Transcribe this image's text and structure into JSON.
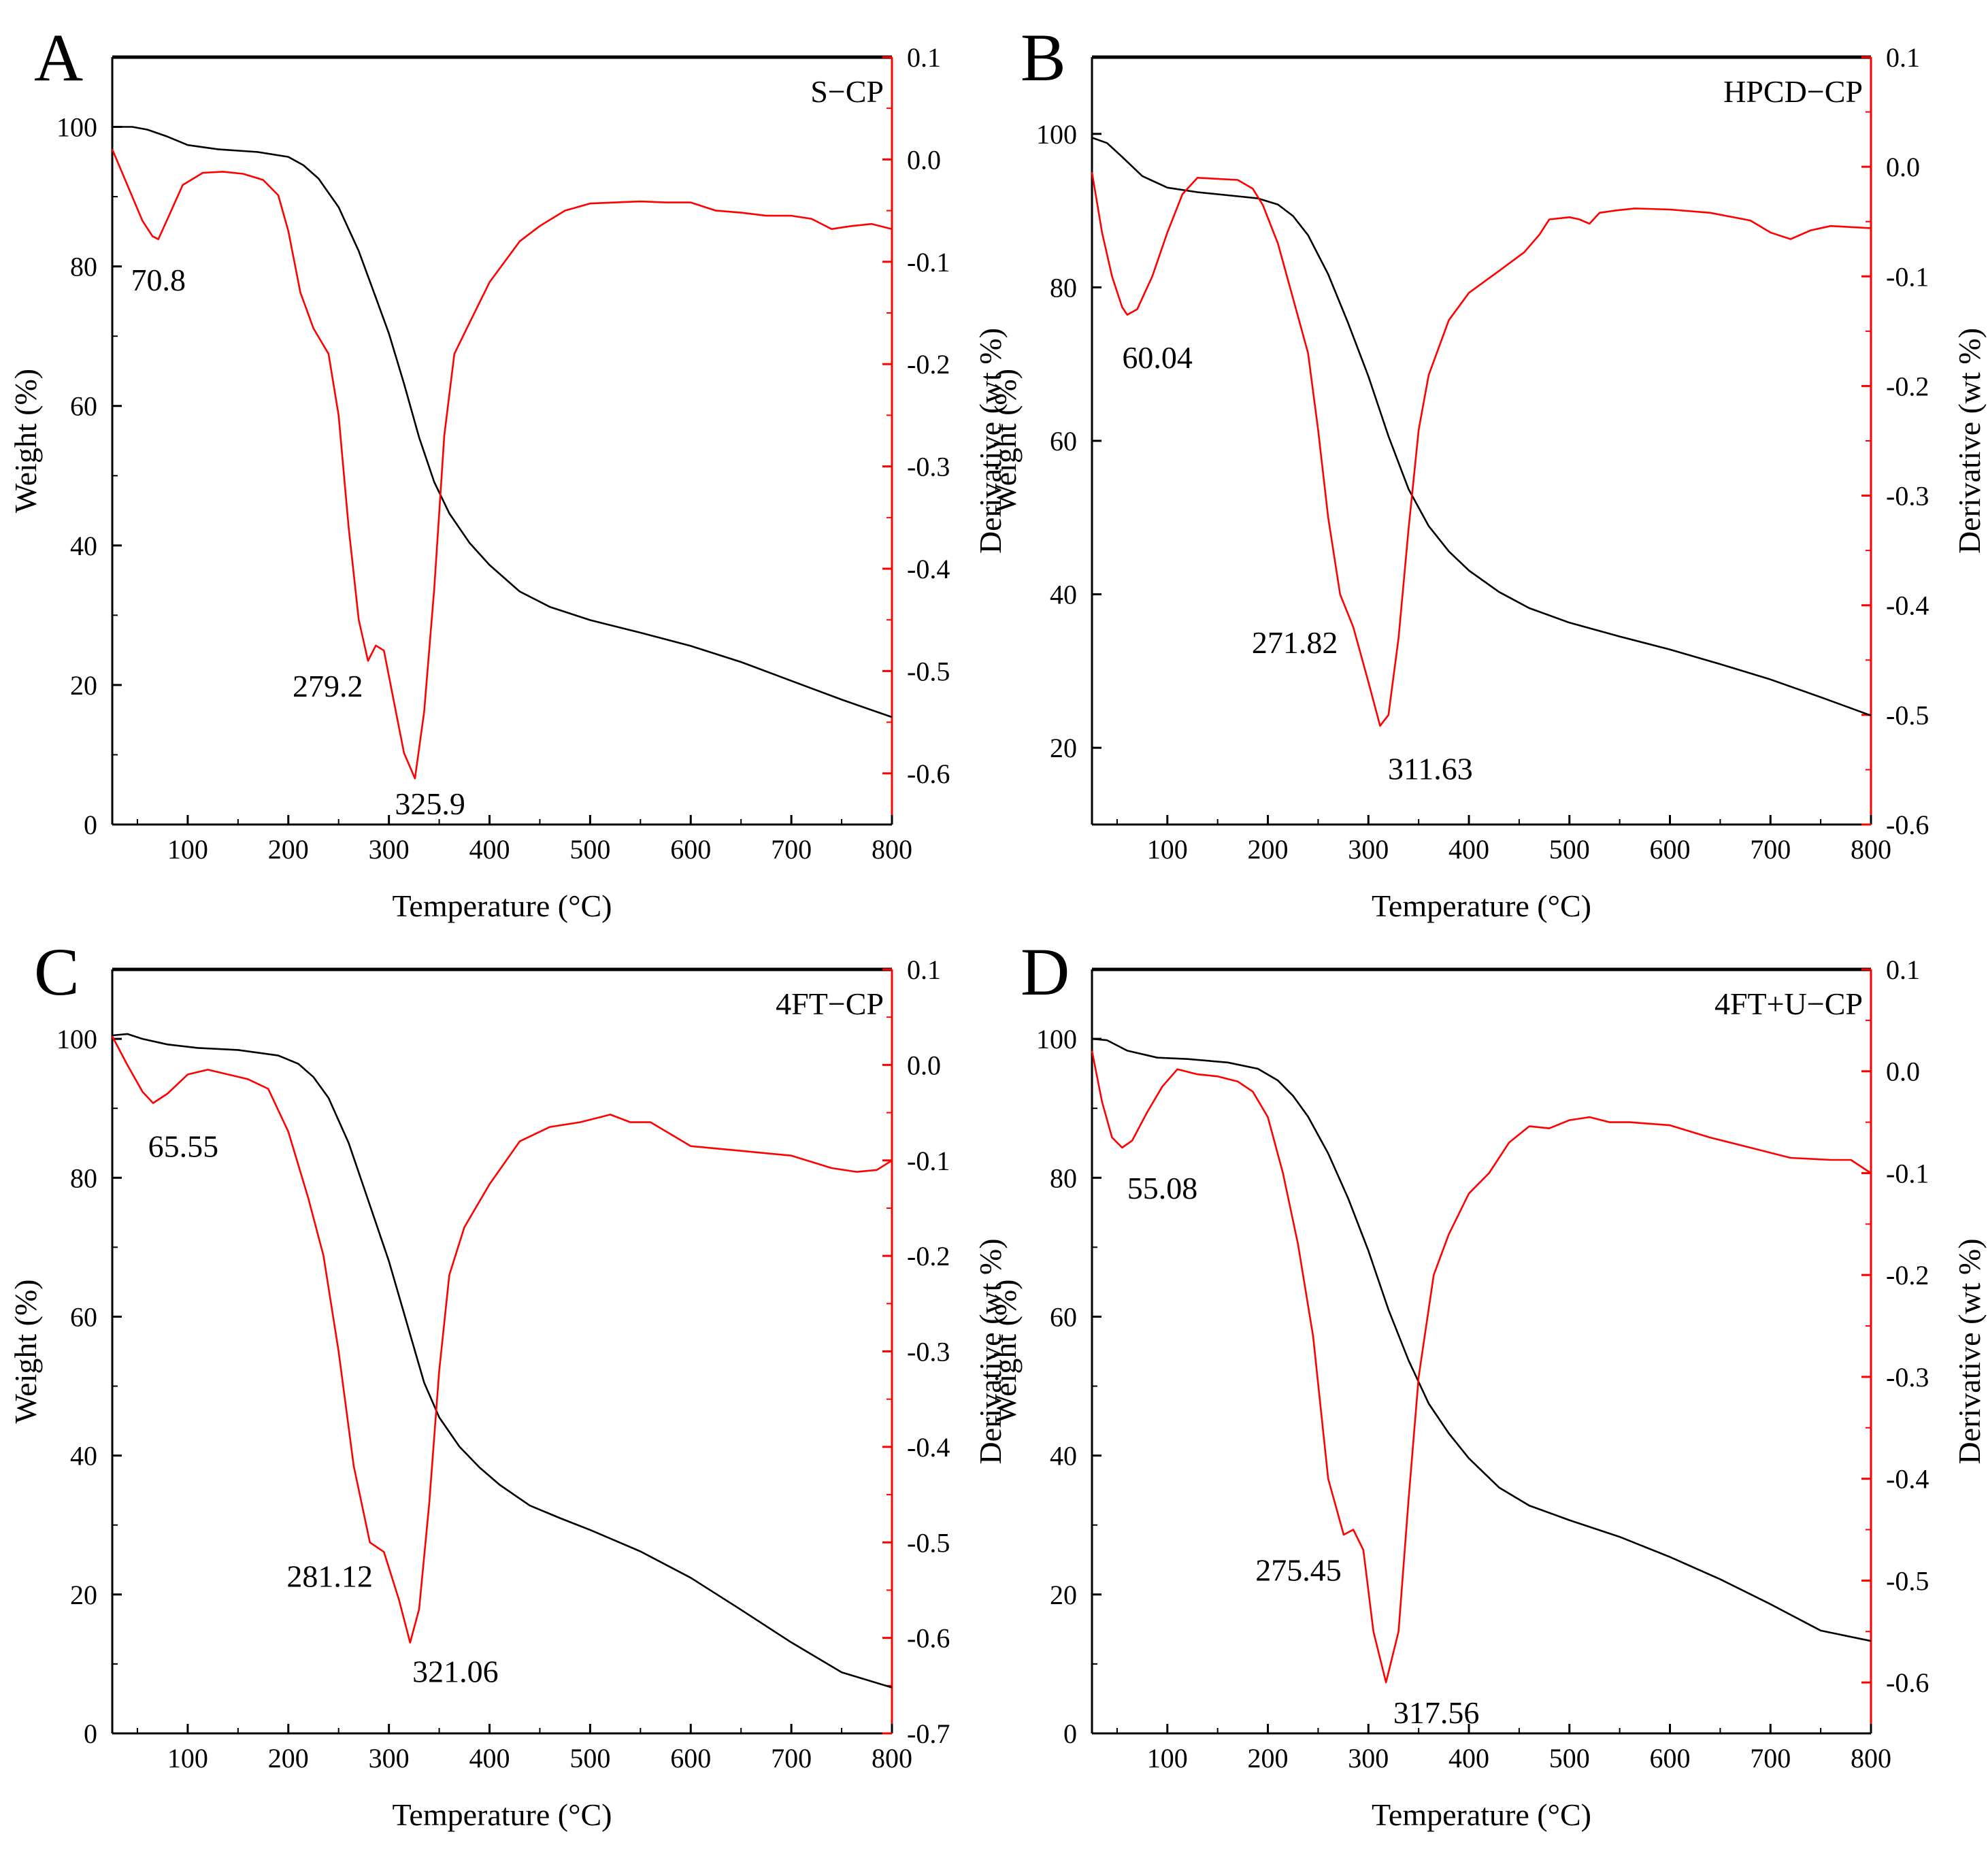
{
  "figure": {
    "colors": {
      "weight": "#000000",
      "derivative": "#ff0000",
      "axis": "#000000"
    },
    "x_ticks": [
      100,
      200,
      300,
      400,
      500,
      600,
      700,
      800
    ]
  },
  "chart_data": [
    {
      "type": "line",
      "panel_letter": "A",
      "sample_label": "S−CP",
      "xlabel": "Temperature (°C)",
      "ylabel": "Weight (%)",
      "y2label": "Derivative (wt %)",
      "xlim": [
        25,
        800
      ],
      "ylim": [
        0,
        110
      ],
      "y2lim": [
        -0.65,
        0.1
      ],
      "y_ticks": [
        0,
        20,
        40,
        60,
        80,
        100
      ],
      "y2_ticks": [
        -0.6,
        -0.5,
        -0.4,
        -0.3,
        -0.2,
        -0.1,
        0.0,
        0.1
      ],
      "y2_tick_labels": [
        "-0.6",
        "-0.5",
        "-0.4",
        "-0.3",
        "-0.2",
        "-0.1",
        "0.0",
        "0.1"
      ],
      "series": [
        {
          "name": "Weight",
          "axis": "left",
          "x": [
            25,
            45,
            60,
            80,
            100,
            130,
            170,
            200,
            215,
            230,
            250,
            270,
            285,
            300,
            315,
            330,
            345,
            360,
            380,
            400,
            430,
            460,
            500,
            550,
            600,
            650,
            700,
            750,
            800
          ],
          "y": [
            100,
            100,
            99.6,
            98.6,
            97.4,
            96.8,
            96.4,
            95.7,
            94.5,
            92.6,
            88.5,
            82.2,
            76.3,
            70.4,
            63.2,
            55.5,
            49.1,
            44.6,
            40.4,
            37.2,
            33.4,
            31.2,
            29.3,
            27.5,
            25.6,
            23.3,
            20.6,
            17.9,
            15.4
          ]
        },
        {
          "name": "Derivative",
          "axis": "right",
          "x": [
            25,
            40,
            55,
            65,
            70.8,
            80,
            95,
            115,
            135,
            155,
            175,
            190,
            200,
            212,
            225,
            240,
            250,
            260,
            270,
            279.2,
            287,
            295,
            305,
            315,
            325.9,
            335,
            345,
            355,
            365,
            380,
            400,
            430,
            450,
            475,
            500,
            525,
            550,
            575,
            600,
            625,
            650,
            675,
            700,
            720,
            740,
            760,
            780,
            800
          ],
          "y": [
            0.01,
            -0.025,
            -0.06,
            -0.075,
            -0.078,
            -0.058,
            -0.025,
            -0.013,
            -0.012,
            -0.014,
            -0.02,
            -0.035,
            -0.07,
            -0.13,
            -0.165,
            -0.19,
            -0.25,
            -0.36,
            -0.45,
            -0.49,
            -0.475,
            -0.48,
            -0.53,
            -0.58,
            -0.605,
            -0.54,
            -0.42,
            -0.27,
            -0.19,
            -0.16,
            -0.12,
            -0.08,
            -0.065,
            -0.05,
            -0.043,
            -0.042,
            -0.041,
            -0.042,
            -0.042,
            -0.05,
            -0.052,
            -0.055,
            -0.055,
            -0.058,
            -0.068,
            -0.065,
            -0.063,
            -0.068
          ]
        }
      ],
      "annotations": [
        {
          "text": "70.8",
          "x": 70.8,
          "y2": -0.078,
          "dx_data": 0,
          "dy_data": -0.03
        },
        {
          "text": "279.2",
          "x": 279.2,
          "y2": -0.49,
          "dx_data": -40,
          "dy_data": -0.015
        },
        {
          "text": "325.9",
          "x": 325.9,
          "y2": -0.605,
          "dx_data": 15,
          "dy_data": -0.015
        }
      ]
    },
    {
      "type": "line",
      "panel_letter": "B",
      "sample_label": "HPCD−CP",
      "xlabel": "Temperature (°C)",
      "ylabel": "Weight (%)",
      "y2label": "Derivative (wt %)",
      "xlim": [
        25,
        800
      ],
      "ylim": [
        10,
        110
      ],
      "y2lim": [
        -0.6,
        0.1
      ],
      "y_ticks": [
        20,
        40,
        60,
        80,
        100
      ],
      "y2_ticks": [
        -0.6,
        -0.5,
        -0.4,
        -0.3,
        -0.2,
        -0.1,
        0.0,
        0.1
      ],
      "y2_tick_labels": [
        "-0.6",
        "-0.5",
        "-0.4",
        "-0.3",
        "-0.2",
        "-0.1",
        "0.0",
        "0.1"
      ],
      "series": [
        {
          "name": "Weight",
          "axis": "left",
          "x": [
            25,
            40,
            55,
            75,
            100,
            130,
            160,
            190,
            210,
            225,
            240,
            260,
            280,
            300,
            320,
            340,
            360,
            380,
            400,
            430,
            460,
            500,
            550,
            600,
            650,
            700,
            750,
            800
          ],
          "y": [
            99.5,
            98.8,
            97,
            94.5,
            93,
            92.4,
            92,
            91.6,
            90.8,
            89.3,
            86.8,
            81.7,
            75.3,
            68.4,
            60.6,
            53.7,
            48.9,
            45.6,
            43.1,
            40.3,
            38.2,
            36.3,
            34.5,
            32.8,
            30.9,
            28.9,
            26.6,
            24.2
          ]
        },
        {
          "name": "Derivative",
          "axis": "right",
          "x": [
            25,
            35,
            45,
            55,
            60.04,
            70,
            85,
            100,
            115,
            130,
            150,
            170,
            185,
            195,
            210,
            225,
            240,
            250,
            260,
            271.82,
            285,
            300,
            311.63,
            320,
            330,
            340,
            350,
            360,
            380,
            400,
            430,
            455,
            470,
            480,
            500,
            510,
            520,
            530,
            545,
            565,
            600,
            640,
            680,
            700,
            720,
            740,
            760,
            800
          ],
          "y": [
            -0.005,
            -0.06,
            -0.1,
            -0.128,
            -0.135,
            -0.13,
            -0.1,
            -0.06,
            -0.025,
            -0.01,
            -0.011,
            -0.012,
            -0.02,
            -0.035,
            -0.07,
            -0.12,
            -0.17,
            -0.24,
            -0.32,
            -0.39,
            -0.42,
            -0.47,
            -0.51,
            -0.5,
            -0.43,
            -0.33,
            -0.24,
            -0.19,
            -0.14,
            -0.115,
            -0.095,
            -0.078,
            -0.062,
            -0.048,
            -0.046,
            -0.048,
            -0.052,
            -0.042,
            -0.04,
            -0.038,
            -0.039,
            -0.042,
            -0.049,
            -0.06,
            -0.066,
            -0.058,
            -0.054,
            -0.056
          ]
        }
      ],
      "annotations": [
        {
          "text": "60.04",
          "x": 60.04,
          "y2": -0.135,
          "dx_data": 30,
          "dy_data": -0.03
        },
        {
          "text": "271.82",
          "x": 271.82,
          "y2": -0.39,
          "dx_data": -45,
          "dy_data": -0.035
        },
        {
          "text": "311.63",
          "x": 311.63,
          "y2": -0.51,
          "dx_data": 50,
          "dy_data": -0.03
        }
      ]
    },
    {
      "type": "line",
      "panel_letter": "C",
      "sample_label": "4FT−CP",
      "xlabel": "Temperature (°C)",
      "ylabel": "Weight (%)",
      "y2label": "Derivative (wt %)",
      "xlim": [
        25,
        800
      ],
      "ylim": [
        0,
        110
      ],
      "y2lim": [
        -0.7,
        0.1
      ],
      "y_ticks": [
        0,
        20,
        40,
        60,
        80,
        100
      ],
      "y2_ticks": [
        -0.7,
        -0.6,
        -0.5,
        -0.4,
        -0.3,
        -0.2,
        -0.1,
        0.0,
        0.1
      ],
      "y2_tick_labels": [
        "-0.7",
        "-0.6",
        "-0.5",
        "-0.4",
        "-0.3",
        "-0.2",
        "-0.1",
        "0.0",
        "0.1"
      ],
      "series": [
        {
          "name": "Weight",
          "axis": "left",
          "x": [
            25,
            40,
            55,
            80,
            110,
            150,
            190,
            210,
            225,
            240,
            260,
            280,
            300,
            320,
            335,
            350,
            370,
            390,
            410,
            440,
            470,
            500,
            550,
            600,
            650,
            700,
            750,
            800
          ],
          "y": [
            100.5,
            100.7,
            100,
            99.2,
            98.7,
            98.4,
            97.6,
            96.4,
            94.5,
            91.5,
            85,
            76.5,
            68,
            58,
            50.5,
            45.5,
            41.3,
            38.3,
            35.8,
            32.8,
            31,
            29.3,
            26.2,
            22.4,
            17.8,
            13.1,
            8.8,
            6.6
          ]
        },
        {
          "name": "Derivative",
          "axis": "right",
          "x": [
            25,
            40,
            55,
            65.55,
            80,
            100,
            120,
            140,
            160,
            180,
            200,
            220,
            235,
            250,
            265,
            281.12,
            295,
            310,
            321.06,
            330,
            340,
            350,
            360,
            375,
            400,
            430,
            460,
            490,
            520,
            540,
            560,
            600,
            650,
            700,
            740,
            765,
            785,
            800
          ],
          "y": [
            0.03,
            0.0,
            -0.028,
            -0.04,
            -0.03,
            -0.01,
            -0.005,
            -0.01,
            -0.015,
            -0.025,
            -0.07,
            -0.14,
            -0.2,
            -0.3,
            -0.42,
            -0.5,
            -0.51,
            -0.56,
            -0.605,
            -0.57,
            -0.46,
            -0.32,
            -0.22,
            -0.17,
            -0.125,
            -0.08,
            -0.065,
            -0.06,
            -0.052,
            -0.06,
            -0.06,
            -0.085,
            -0.09,
            -0.095,
            -0.108,
            -0.112,
            -0.11,
            -0.1
          ]
        }
      ],
      "annotations": [
        {
          "text": "65.55",
          "x": 65.55,
          "y2": -0.04,
          "dx_data": 30,
          "dy_data": -0.035
        },
        {
          "text": "281.12",
          "x": 281.12,
          "y2": -0.5,
          "dx_data": -40,
          "dy_data": -0.025
        },
        {
          "text": "321.06",
          "x": 321.06,
          "y2": -0.605,
          "dx_data": 45,
          "dy_data": -0.02
        }
      ]
    },
    {
      "type": "line",
      "panel_letter": "D",
      "sample_label": "4FT+U−CP",
      "xlabel": "Temperature (°C)",
      "ylabel": "Weight (%)",
      "y2label": "Derivative (wt %)",
      "xlim": [
        25,
        800
      ],
      "ylim": [
        0,
        110
      ],
      "y2lim": [
        -0.65,
        0.1
      ],
      "y_ticks": [
        0,
        20,
        40,
        60,
        80,
        100
      ],
      "y2_ticks": [
        -0.6,
        -0.5,
        -0.4,
        -0.3,
        -0.2,
        -0.1,
        0.0,
        0.1
      ],
      "y2_tick_labels": [
        "-0.6",
        "-0.5",
        "-0.4",
        "-0.3",
        "-0.2",
        "-0.1",
        "0.0",
        "0.1"
      ],
      "series": [
        {
          "name": "Weight",
          "axis": "left",
          "x": [
            25,
            40,
            60,
            90,
            120,
            160,
            190,
            210,
            225,
            240,
            260,
            280,
            300,
            320,
            340,
            360,
            380,
            400,
            430,
            460,
            500,
            550,
            600,
            650,
            700,
            750,
            800
          ],
          "y": [
            100,
            99.8,
            98.3,
            97.3,
            97.1,
            96.6,
            95.7,
            94,
            91.8,
            88.8,
            83.5,
            77,
            69.5,
            61,
            53.7,
            47.5,
            43.2,
            39.6,
            35.4,
            32.8,
            30.7,
            28.3,
            25.4,
            22.2,
            18.6,
            14.8,
            13.3
          ]
        },
        {
          "name": "Derivative",
          "axis": "right",
          "x": [
            25,
            35,
            45,
            55.08,
            65,
            80,
            95,
            110,
            130,
            150,
            170,
            185,
            200,
            215,
            230,
            245,
            260,
            275.45,
            285,
            295,
            305,
            317.56,
            330,
            340,
            350,
            365,
            380,
            400,
            420,
            440,
            460,
            480,
            500,
            520,
            540,
            560,
            600,
            640,
            680,
            720,
            760,
            780,
            800
          ],
          "y": [
            0.02,
            -0.03,
            -0.065,
            -0.075,
            -0.068,
            -0.04,
            -0.015,
            0.002,
            -0.003,
            -0.005,
            -0.01,
            -0.02,
            -0.045,
            -0.1,
            -0.17,
            -0.26,
            -0.4,
            -0.455,
            -0.45,
            -0.47,
            -0.55,
            -0.6,
            -0.55,
            -0.42,
            -0.3,
            -0.2,
            -0.16,
            -0.12,
            -0.1,
            -0.07,
            -0.054,
            -0.056,
            -0.048,
            -0.045,
            -0.05,
            -0.05,
            -0.053,
            -0.065,
            -0.075,
            -0.085,
            -0.087,
            -0.087,
            -0.1
          ]
        }
      ],
      "annotations": [
        {
          "text": "55.08",
          "x": 55.08,
          "y2": -0.075,
          "dx_data": 40,
          "dy_data": -0.03
        },
        {
          "text": "275.45",
          "x": 275.45,
          "y2": -0.455,
          "dx_data": -45,
          "dy_data": -0.025
        },
        {
          "text": "317.56",
          "x": 317.56,
          "y2": -0.6,
          "dx_data": 50,
          "dy_data": -0.02
        }
      ]
    }
  ]
}
